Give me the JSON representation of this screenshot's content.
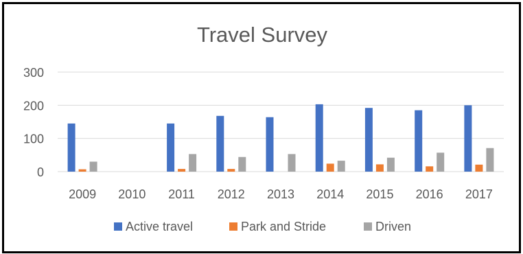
{
  "chart_data": {
    "type": "bar",
    "title": "Travel Survey",
    "xlabel": "",
    "ylabel": "",
    "categories": [
      "2009",
      "2010",
      "2011",
      "2012",
      "2013",
      "2014",
      "2015",
      "2016",
      "2017"
    ],
    "series": [
      {
        "name": "Active travel",
        "color": "#4472C4",
        "values": [
          145,
          0,
          145,
          168,
          164,
          203,
          192,
          185,
          200
        ]
      },
      {
        "name": "Park and Stride",
        "color": "#ED7D31",
        "values": [
          7,
          0,
          8,
          8,
          0,
          24,
          22,
          16,
          21
        ]
      },
      {
        "name": "Driven",
        "color": "#A5A5A5",
        "values": [
          30,
          0,
          53,
          44,
          53,
          33,
          42,
          57,
          71
        ]
      }
    ],
    "ylim": [
      0,
      300
    ],
    "yticks": [
      0,
      100,
      200,
      300
    ],
    "grid": true,
    "legend_position": "bottom"
  }
}
